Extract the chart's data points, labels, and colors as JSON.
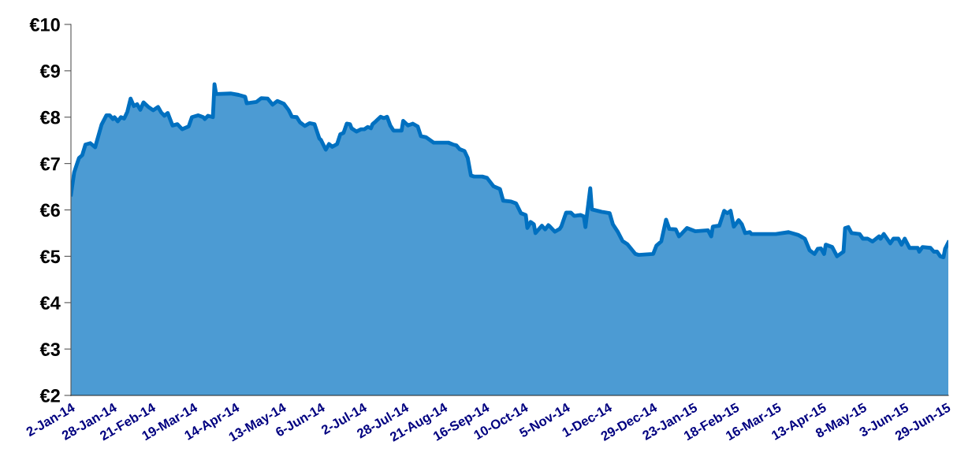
{
  "chart_data": {
    "type": "area",
    "x": [
      "2014-01-02",
      "2014-01-04",
      "2014-01-07",
      "2014-01-09",
      "2014-01-11",
      "2014-01-14",
      "2014-01-17",
      "2014-01-21",
      "2014-01-24",
      "2014-01-26",
      "2014-01-28",
      "2014-01-29",
      "2014-01-31",
      "2014-02-02",
      "2014-02-04",
      "2014-02-06",
      "2014-02-08",
      "2014-02-10",
      "2014-02-12",
      "2014-02-14",
      "2014-02-16",
      "2014-02-19",
      "2014-02-22",
      "2014-02-25",
      "2014-02-27",
      "2014-03-01",
      "2014-03-03",
      "2014-03-06",
      "2014-03-09",
      "2014-03-12",
      "2014-03-16",
      "2014-03-18",
      "2014-03-22",
      "2014-03-25",
      "2014-03-26",
      "2014-03-28",
      "2014-03-31",
      "2014-04-01",
      "2014-04-02",
      "2014-04-11",
      "2014-04-16",
      "2014-04-20",
      "2014-04-21",
      "2014-04-27",
      "2014-04-30",
      "2014-05-04",
      "2014-05-07",
      "2014-05-10",
      "2014-05-14",
      "2014-05-17",
      "2014-05-19",
      "2014-05-22",
      "2014-05-24",
      "2014-05-27",
      "2014-05-30",
      "2014-06-02",
      "2014-06-05",
      "2014-06-06",
      "2014-06-09",
      "2014-06-11",
      "2014-06-13",
      "2014-06-16",
      "2014-06-18",
      "2014-06-20",
      "2014-06-22",
      "2014-06-24",
      "2014-06-25",
      "2014-06-28",
      "2014-07-01",
      "2014-07-03",
      "2014-07-05",
      "2014-07-07",
      "2014-07-08",
      "2014-07-10",
      "2014-07-13",
      "2014-07-15",
      "2014-07-17",
      "2014-07-19",
      "2014-07-21",
      "2014-07-26",
      "2014-07-27",
      "2014-07-30",
      "2014-08-02",
      "2014-08-05",
      "2014-08-07",
      "2014-08-10",
      "2014-08-15",
      "2014-08-24",
      "2014-08-27",
      "2014-08-29",
      "2014-08-31",
      "2014-09-03",
      "2014-09-05",
      "2014-09-07",
      "2014-09-09",
      "2014-09-14",
      "2014-09-17",
      "2014-09-21",
      "2014-09-25",
      "2014-09-27",
      "2014-10-02",
      "2014-10-05",
      "2014-10-08",
      "2014-10-11",
      "2014-10-12",
      "2014-10-14",
      "2014-10-16",
      "2014-10-17",
      "2014-10-21",
      "2014-10-23",
      "2014-10-25",
      "2014-10-26",
      "2014-10-29",
      "2014-11-01",
      "2014-11-02",
      "2014-11-05",
      "2014-11-08",
      "2014-11-10",
      "2014-11-14",
      "2014-11-16",
      "2014-11-17",
      "2014-11-20",
      "2014-11-21",
      "2014-11-27",
      "2014-12-02",
      "2014-12-04",
      "2014-12-07",
      "2014-12-10",
      "2014-12-13",
      "2014-12-18",
      "2014-12-20",
      "2014-12-29",
      "2014-12-31",
      "2015-01-03",
      "2015-01-06",
      "2015-01-08",
      "2015-01-12",
      "2015-01-14",
      "2015-01-16",
      "2015-01-19",
      "2015-01-24",
      "2015-02-01",
      "2015-02-03",
      "2015-02-04",
      "2015-02-08",
      "2015-02-11",
      "2015-02-13",
      "2015-02-15",
      "2015-02-17",
      "2015-02-20",
      "2015-02-22",
      "2015-02-24",
      "2015-02-27",
      "2015-02-28",
      "2015-03-15",
      "2015-03-23",
      "2015-03-29",
      "2015-04-02",
      "2015-04-05",
      "2015-04-08",
      "2015-04-10",
      "2015-04-12",
      "2015-04-14",
      "2015-04-15",
      "2015-04-19",
      "2015-04-22",
      "2015-04-26",
      "2015-04-27",
      "2015-04-29",
      "2015-05-01",
      "2015-05-06",
      "2015-05-08",
      "2015-05-11",
      "2015-05-14",
      "2015-05-18",
      "2015-05-19",
      "2015-05-21",
      "2015-05-25",
      "2015-05-27",
      "2015-05-30",
      "2015-06-01",
      "2015-06-03",
      "2015-06-06",
      "2015-06-11",
      "2015-06-12",
      "2015-06-14",
      "2015-06-19",
      "2015-06-21",
      "2015-06-23",
      "2015-06-25",
      "2015-06-27",
      "2015-06-28",
      "2015-06-30"
    ],
    "series": [
      {
        "color": "#0070c0",
        "values": [
          6.33,
          6.81,
          7.12,
          7.18,
          7.41,
          7.44,
          7.35,
          7.84,
          8.04,
          8.04,
          7.96,
          8.0,
          7.91,
          8.0,
          7.97,
          8.12,
          8.4,
          8.24,
          8.28,
          8.16,
          8.32,
          8.22,
          8.15,
          8.22,
          8.1,
          8.03,
          8.09,
          7.82,
          7.85,
          7.74,
          7.8,
          8.0,
          8.04,
          8.0,
          7.96,
          8.03,
          8.0,
          8.71,
          8.5,
          8.51,
          8.48,
          8.44,
          8.3,
          8.33,
          8.41,
          8.4,
          8.27,
          8.35,
          8.29,
          8.15,
          8.01,
          8.0,
          7.89,
          7.81,
          7.87,
          7.85,
          7.54,
          7.51,
          7.3,
          7.42,
          7.36,
          7.42,
          7.63,
          7.66,
          7.86,
          7.85,
          7.76,
          7.69,
          7.74,
          7.74,
          7.79,
          7.76,
          7.85,
          7.91,
          8.01,
          7.98,
          8.01,
          7.82,
          7.71,
          7.71,
          7.92,
          7.82,
          7.86,
          7.8,
          7.59,
          7.57,
          7.45,
          7.45,
          7.41,
          7.39,
          7.31,
          7.27,
          7.12,
          6.74,
          6.72,
          6.72,
          6.69,
          6.51,
          6.45,
          6.2,
          6.18,
          6.14,
          5.93,
          5.89,
          5.61,
          5.74,
          5.69,
          5.5,
          5.66,
          5.58,
          5.67,
          5.64,
          5.53,
          5.59,
          5.64,
          5.94,
          5.94,
          5.87,
          5.89,
          5.86,
          5.63,
          6.47,
          6.01,
          5.96,
          5.93,
          5.69,
          5.53,
          5.33,
          5.26,
          5.05,
          5.03,
          5.05,
          5.23,
          5.32,
          5.79,
          5.59,
          5.58,
          5.43,
          5.5,
          5.61,
          5.54,
          5.56,
          5.43,
          5.64,
          5.66,
          5.98,
          5.93,
          5.98,
          5.64,
          5.78,
          5.69,
          5.5,
          5.52,
          5.48,
          5.48,
          5.52,
          5.46,
          5.38,
          5.13,
          5.05,
          5.16,
          5.17,
          5.05,
          5.25,
          5.2,
          5.0,
          5.1,
          5.61,
          5.63,
          5.5,
          5.48,
          5.38,
          5.38,
          5.32,
          5.43,
          5.38,
          5.48,
          5.28,
          5.38,
          5.38,
          5.25,
          5.38,
          5.18,
          5.18,
          5.1,
          5.2,
          5.18,
          5.1,
          5.1,
          5.0,
          4.98,
          5.16,
          5.3
        ]
      }
    ],
    "xlim": [
      "2014-01-02",
      "2015-06-30"
    ],
    "xticks": [
      {
        "value": "2014-01-02",
        "label": "2-Jan-14"
      },
      {
        "value": "2014-01-28",
        "label": "28-Jan-14"
      },
      {
        "value": "2014-02-21",
        "label": "21-Feb-14"
      },
      {
        "value": "2014-03-19",
        "label": "19-Mar-14"
      },
      {
        "value": "2014-04-14",
        "label": "14-Apr-14"
      },
      {
        "value": "2014-05-13",
        "label": "13-May-14"
      },
      {
        "value": "2014-06-06",
        "label": "6-Jun-14"
      },
      {
        "value": "2014-07-02",
        "label": "2-Jul-14"
      },
      {
        "value": "2014-07-28",
        "label": "28-Jul-14"
      },
      {
        "value": "2014-08-21",
        "label": "21-Aug-14"
      },
      {
        "value": "2014-09-16",
        "label": "16-Sep-14"
      },
      {
        "value": "2014-10-10",
        "label": "10-Oct-14"
      },
      {
        "value": "2014-11-05",
        "label": "5-Nov-14"
      },
      {
        "value": "2014-12-01",
        "label": "1-Dec-14"
      },
      {
        "value": "2014-12-29",
        "label": "29-Dec-14"
      },
      {
        "value": "2015-01-23",
        "label": "23-Jan-15"
      },
      {
        "value": "2015-02-18",
        "label": "18-Feb-15"
      },
      {
        "value": "2015-03-16",
        "label": "16-Mar-15"
      },
      {
        "value": "2015-04-13",
        "label": "13-Apr-15"
      },
      {
        "value": "2015-05-08",
        "label": "8-May-15"
      },
      {
        "value": "2015-06-03",
        "label": "3-Jun-15"
      },
      {
        "value": "2015-06-29",
        "label": "29-Jun-15"
      }
    ],
    "ylim": [
      2,
      10
    ],
    "yticks": [
      {
        "value": 2,
        "label": "€2"
      },
      {
        "value": 3,
        "label": "€3"
      },
      {
        "value": 4,
        "label": "€4"
      },
      {
        "value": 5,
        "label": "€5"
      },
      {
        "value": 6,
        "label": "€6"
      },
      {
        "value": 7,
        "label": "€7"
      },
      {
        "value": 8,
        "label": "€8"
      },
      {
        "value": 9,
        "label": "€9"
      },
      {
        "value": 10,
        "label": "€10"
      }
    ],
    "grid": false
  }
}
